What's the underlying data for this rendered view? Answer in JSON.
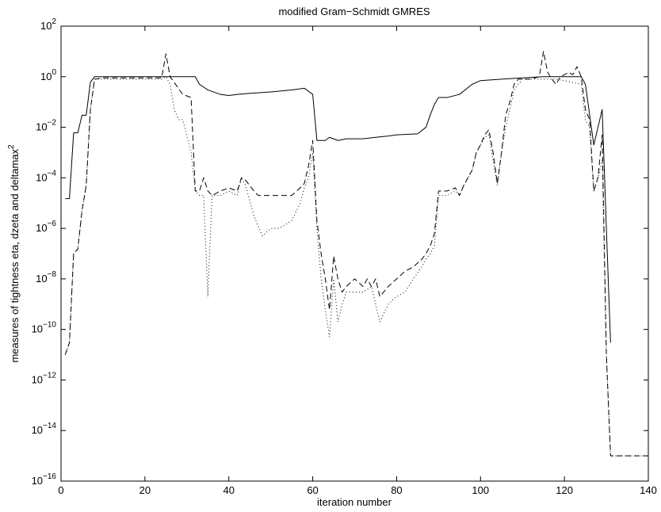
{
  "chart_data": {
    "type": "line",
    "title": "modified Gram−Schmidt GMRES",
    "xlabel": "iteration number",
    "ylabel": "measures of tightness eta, dzeta and deltamax",
    "ylabel_superscript": "2",
    "xlim": [
      0,
      140
    ],
    "ylim_exponent": [
      -16,
      2
    ],
    "y_scale": "log",
    "grid": false,
    "legend": "none",
    "xticks": [
      "0",
      "20",
      "40",
      "60",
      "80",
      "100",
      "120",
      "140"
    ],
    "yticks": [
      {
        "base": "10",
        "exp": "2"
      },
      {
        "base": "10",
        "exp": "0"
      },
      {
        "base": "10",
        "exp": "−2"
      },
      {
        "base": "10",
        "exp": "−4"
      },
      {
        "base": "10",
        "exp": "−6"
      },
      {
        "base": "10",
        "exp": "−8"
      },
      {
        "base": "10",
        "exp": "−10"
      },
      {
        "base": "10",
        "exp": "−12"
      },
      {
        "base": "10",
        "exp": "−14"
      },
      {
        "base": "10",
        "exp": "−16"
      }
    ],
    "series": [
      {
        "style": "solid",
        "points": [
          [
            1,
            1.5e-05
          ],
          [
            2,
            1.5e-05
          ],
          [
            3,
            0.006
          ],
          [
            4,
            0.006
          ],
          [
            5,
            0.03
          ],
          [
            6,
            0.03
          ],
          [
            7,
            0.6
          ],
          [
            8,
            1.0
          ],
          [
            10,
            1.0
          ],
          [
            20,
            1.0
          ],
          [
            30,
            1.0
          ],
          [
            32,
            1.0
          ],
          [
            33,
            0.5
          ],
          [
            35,
            0.3
          ],
          [
            38,
            0.2
          ],
          [
            40,
            0.18
          ],
          [
            42,
            0.2
          ],
          [
            45,
            0.22
          ],
          [
            50,
            0.25
          ],
          [
            55,
            0.3
          ],
          [
            58,
            0.35
          ],
          [
            60,
            0.2
          ],
          [
            61,
            0.003
          ],
          [
            63,
            0.003
          ],
          [
            64,
            0.004
          ],
          [
            66,
            0.003
          ],
          [
            68,
            0.0035
          ],
          [
            72,
            0.0035
          ],
          [
            75,
            0.004
          ],
          [
            78,
            0.0045
          ],
          [
            80,
            0.005
          ],
          [
            85,
            0.0055
          ],
          [
            87,
            0.01
          ],
          [
            88,
            0.03
          ],
          [
            89,
            0.08
          ],
          [
            90,
            0.15
          ],
          [
            92,
            0.15
          ],
          [
            95,
            0.2
          ],
          [
            98,
            0.5
          ],
          [
            100,
            0.7
          ],
          [
            105,
            0.8
          ],
          [
            110,
            0.9
          ],
          [
            115,
            1.0
          ],
          [
            120,
            1.0
          ],
          [
            124,
            1.0
          ],
          [
            125,
            0.5
          ],
          [
            127,
            0.002
          ],
          [
            128,
            0.01
          ],
          [
            129,
            0.05
          ],
          [
            130,
            1e-06
          ],
          [
            131,
            3e-11
          ]
        ]
      },
      {
        "style": "dashed",
        "points": [
          [
            1,
            1e-11
          ],
          [
            2,
            3e-11
          ],
          [
            3,
            1e-07
          ],
          [
            4,
            1.5e-07
          ],
          [
            5,
            5e-06
          ],
          [
            6,
            5e-05
          ],
          [
            7,
            0.05
          ],
          [
            8,
            0.8
          ],
          [
            10,
            0.9
          ],
          [
            15,
            0.9
          ],
          [
            20,
            0.9
          ],
          [
            24,
            0.9
          ],
          [
            25,
            8.0
          ],
          [
            26,
            1.0
          ],
          [
            29,
            0.2
          ],
          [
            31,
            0.15
          ],
          [
            32,
            3e-05
          ],
          [
            33,
            3e-05
          ],
          [
            34,
            0.0001
          ],
          [
            35,
            3e-05
          ],
          [
            36,
            2e-05
          ],
          [
            38,
            3e-05
          ],
          [
            40,
            4e-05
          ],
          [
            42,
            3e-05
          ],
          [
            43,
            0.0001
          ],
          [
            44,
            8e-05
          ],
          [
            46,
            3e-05
          ],
          [
            47,
            2e-05
          ],
          [
            50,
            2e-05
          ],
          [
            55,
            2e-05
          ],
          [
            57,
            4e-05
          ],
          [
            58,
            6e-05
          ],
          [
            59,
            0.0003
          ],
          [
            60,
            0.003
          ],
          [
            61,
            2e-06
          ],
          [
            62,
            1e-07
          ],
          [
            63,
            1e-08
          ],
          [
            64,
            6e-10
          ],
          [
            65,
            8e-08
          ],
          [
            66,
            1e-08
          ],
          [
            67,
            3e-09
          ],
          [
            68,
            5e-09
          ],
          [
            70,
            1e-08
          ],
          [
            72,
            5e-09
          ],
          [
            73,
            1e-08
          ],
          [
            74,
            5e-09
          ],
          [
            75,
            1e-08
          ],
          [
            76,
            2e-09
          ],
          [
            78,
            5e-09
          ],
          [
            80,
            1e-08
          ],
          [
            82,
            2e-08
          ],
          [
            84,
            3e-08
          ],
          [
            86,
            6e-08
          ],
          [
            87,
            1e-07
          ],
          [
            88,
            2e-07
          ],
          [
            89,
            6e-07
          ],
          [
            90,
            3e-05
          ],
          [
            92,
            3e-05
          ],
          [
            94,
            4e-05
          ],
          [
            95,
            2e-05
          ],
          [
            96,
            5e-05
          ],
          [
            98,
            0.0002
          ],
          [
            99,
            0.001
          ],
          [
            100,
            0.002
          ],
          [
            101,
            0.005
          ],
          [
            102,
            0.008
          ],
          [
            103,
            0.001
          ],
          [
            104,
            6e-05
          ],
          [
            105,
            0.001
          ],
          [
            106,
            0.03
          ],
          [
            107,
            0.1
          ],
          [
            108,
            0.5
          ],
          [
            109,
            0.8
          ],
          [
            110,
            0.8
          ],
          [
            112,
            0.8
          ],
          [
            114,
            1.0
          ],
          [
            115,
            10.0
          ],
          [
            116,
            1.5
          ],
          [
            117,
            0.8
          ],
          [
            118,
            0.5
          ],
          [
            119,
            1.0
          ],
          [
            120,
            1.2
          ],
          [
            121,
            1.5
          ],
          [
            122,
            1.2
          ],
          [
            123,
            2.5
          ],
          [
            124,
            1.0
          ],
          [
            125,
            0.05
          ],
          [
            126,
            0.02
          ],
          [
            127,
            3e-05
          ],
          [
            128,
            0.0001
          ],
          [
            129,
            0.005
          ],
          [
            130,
            1e-11
          ],
          [
            131,
            1e-15
          ],
          [
            132,
            1e-15
          ],
          [
            135,
            1e-15
          ],
          [
            140,
            1e-15
          ]
        ]
      },
      {
        "style": "dotted",
        "points": [
          [
            1,
            1e-11
          ],
          [
            2,
            3e-11
          ],
          [
            3,
            1e-07
          ],
          [
            4,
            1.5e-07
          ],
          [
            5,
            5e-06
          ],
          [
            6,
            5e-05
          ],
          [
            7,
            0.05
          ],
          [
            8,
            0.8
          ],
          [
            10,
            0.8
          ],
          [
            15,
            0.8
          ],
          [
            20,
            0.8
          ],
          [
            24,
            0.8
          ],
          [
            25,
            1.0
          ],
          [
            26,
            0.5
          ],
          [
            27,
            0.05
          ],
          [
            28,
            0.02
          ],
          [
            29,
            0.02
          ],
          [
            31,
            0.001
          ],
          [
            32,
            3e-05
          ],
          [
            33,
            2e-05
          ],
          [
            34,
            2e-05
          ],
          [
            35,
            2e-09
          ],
          [
            36,
            2e-05
          ],
          [
            38,
            2e-05
          ],
          [
            40,
            3e-05
          ],
          [
            42,
            2e-05
          ],
          [
            43,
            0.0001
          ],
          [
            44,
            5e-05
          ],
          [
            46,
            3e-06
          ],
          [
            48,
            5e-07
          ],
          [
            50,
            1e-06
          ],
          [
            52,
            1e-06
          ],
          [
            55,
            2e-06
          ],
          [
            57,
            1e-05
          ],
          [
            58,
            4e-05
          ],
          [
            59,
            0.0001
          ],
          [
            60,
            0.001
          ],
          [
            61,
            1e-06
          ],
          [
            62,
            1e-08
          ],
          [
            63,
            6e-10
          ],
          [
            64,
            5e-11
          ],
          [
            65,
            1e-08
          ],
          [
            66,
            2e-10
          ],
          [
            67,
            1e-09
          ],
          [
            68,
            3e-09
          ],
          [
            70,
            3e-09
          ],
          [
            72,
            3e-09
          ],
          [
            74,
            5e-09
          ],
          [
            75,
            1e-09
          ],
          [
            76,
            2e-10
          ],
          [
            78,
            1e-09
          ],
          [
            80,
            2e-09
          ],
          [
            82,
            3e-09
          ],
          [
            84,
            1e-08
          ],
          [
            86,
            3e-08
          ],
          [
            87,
            6e-08
          ],
          [
            88,
            1e-07
          ],
          [
            89,
            2e-07
          ],
          [
            90,
            2e-05
          ],
          [
            92,
            2e-05
          ],
          [
            94,
            3e-05
          ],
          [
            95,
            2e-05
          ],
          [
            96,
            5e-05
          ],
          [
            98,
            0.0002
          ],
          [
            99,
            0.001
          ],
          [
            100,
            0.002
          ],
          [
            101,
            0.004
          ],
          [
            102,
            0.005
          ],
          [
            103,
            0.0005
          ],
          [
            104,
            5e-05
          ],
          [
            105,
            0.001
          ],
          [
            106,
            0.01
          ],
          [
            107,
            0.05
          ],
          [
            108,
            0.3
          ],
          [
            110,
            0.8
          ],
          [
            115,
            0.8
          ],
          [
            118,
            0.8
          ],
          [
            120,
            0.7
          ],
          [
            122,
            0.6
          ],
          [
            124,
            0.5
          ],
          [
            125,
            0.02
          ],
          [
            126,
            0.01
          ],
          [
            127,
            3e-05
          ],
          [
            128,
            0.0001
          ],
          [
            129,
            0.0005
          ],
          [
            130,
            1e-11
          ],
          [
            131,
            1e-15
          ],
          [
            135,
            1e-15
          ],
          [
            140,
            1e-15
          ]
        ]
      }
    ]
  }
}
